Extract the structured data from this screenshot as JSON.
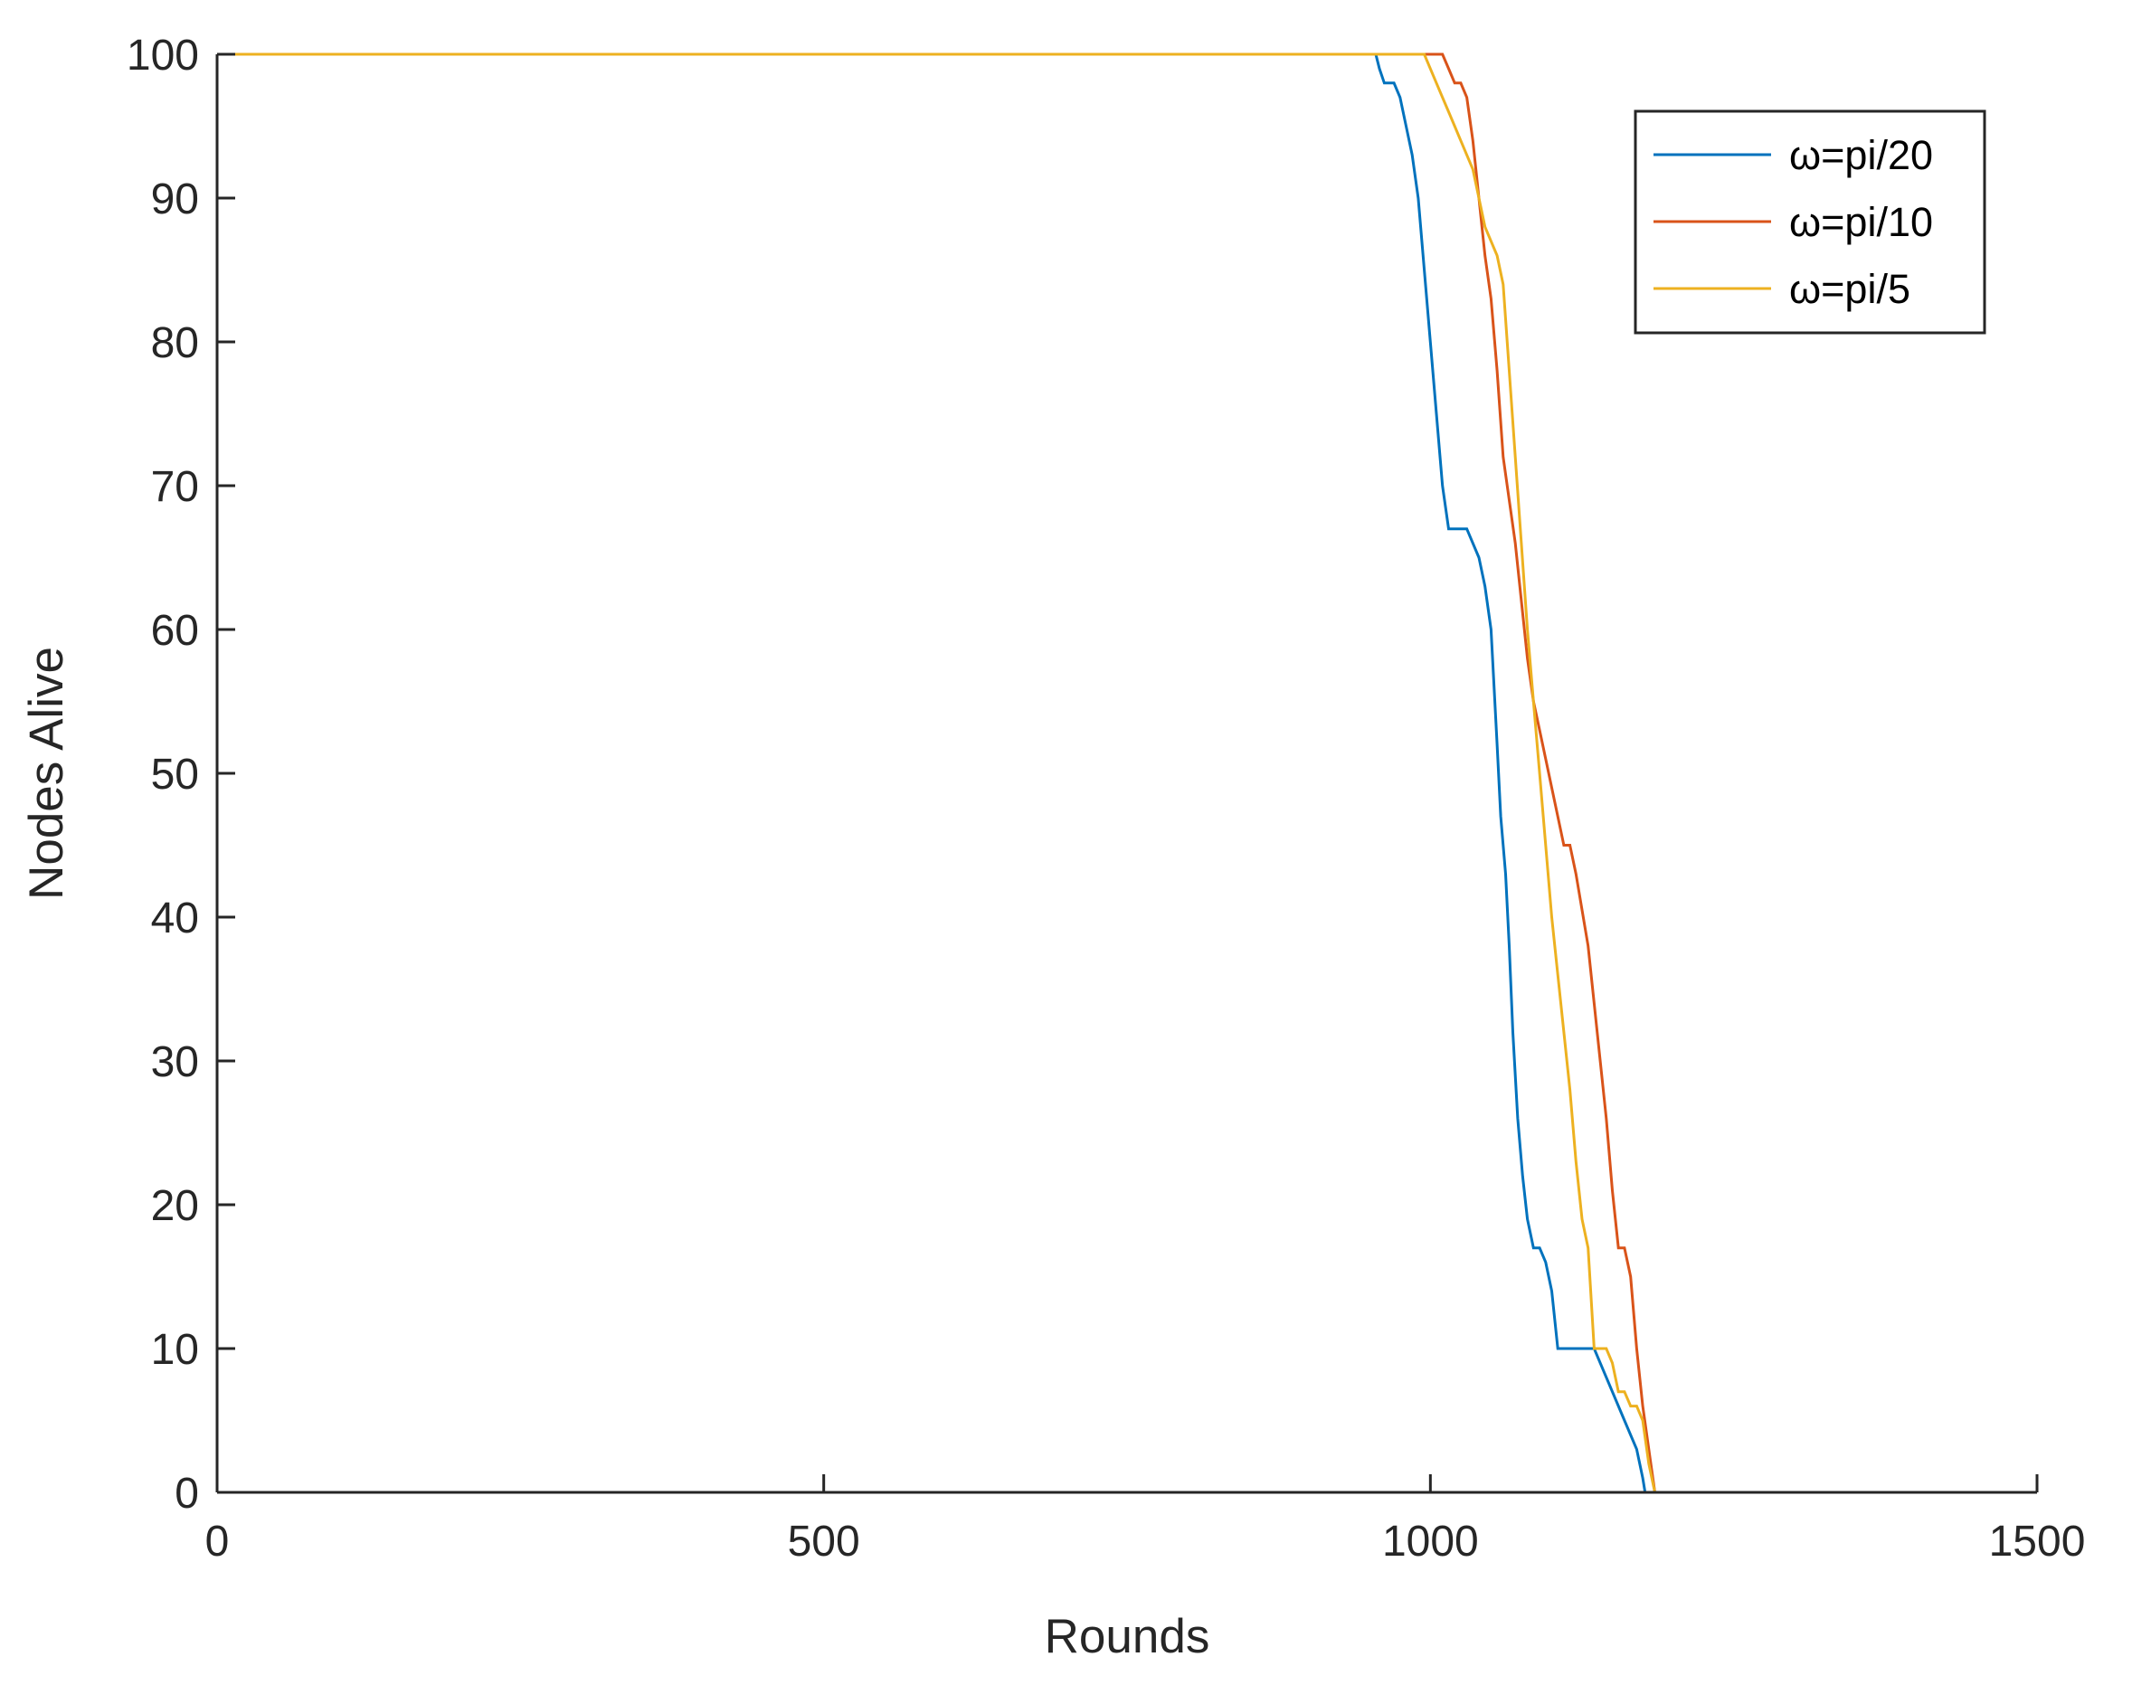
{
  "chart_data": {
    "type": "line",
    "title": "",
    "xlabel": "Rounds",
    "ylabel": "Nodes Alive",
    "xlim": [
      0,
      1500
    ],
    "ylim": [
      0,
      100
    ],
    "xticks": [
      0,
      500,
      1000,
      1500
    ],
    "yticks": [
      0,
      10,
      20,
      30,
      40,
      50,
      60,
      70,
      80,
      90,
      100
    ],
    "grid": false,
    "legend_position": "top-right",
    "series": [
      {
        "name": "ω=pi/20",
        "color": "#0072BD",
        "x": [
          0,
          955,
          958,
          962,
          970,
          975,
          980,
          985,
          990,
          995,
          1000,
          1005,
          1010,
          1015,
          1020,
          1024,
          1030,
          1040,
          1045,
          1050,
          1055,
          1058,
          1062,
          1065,
          1068,
          1072,
          1076,
          1080,
          1085,
          1090,
          1095,
          1100,
          1105,
          1110,
          1115,
          1120,
          1135,
          1140,
          1145,
          1150,
          1160,
          1170,
          1175,
          1177,
          1180,
          1500
        ],
        "y": [
          100,
          100,
          99,
          98,
          98,
          97,
          95,
          93,
          90,
          85,
          80,
          75,
          70,
          67,
          67,
          67,
          67,
          65,
          63,
          60,
          52,
          47,
          43,
          38,
          32,
          26,
          22,
          19,
          17,
          17,
          16,
          14,
          10,
          10,
          10,
          10,
          10,
          9,
          8,
          7,
          5,
          3,
          1,
          0,
          0,
          0
        ]
      },
      {
        "name": "ω=pi/10",
        "color": "#D95319",
        "x": [
          0,
          1010,
          1015,
          1020,
          1025,
          1030,
          1035,
          1040,
          1045,
          1050,
          1055,
          1060,
          1065,
          1070,
          1075,
          1080,
          1085,
          1090,
          1095,
          1100,
          1105,
          1110,
          1115,
          1120,
          1130,
          1135,
          1140,
          1145,
          1150,
          1155,
          1160,
          1165,
          1170,
          1175,
          1180,
          1185,
          1500
        ],
        "y": [
          100,
          100,
          99,
          98,
          98,
          97,
          94,
          90,
          86,
          83,
          78,
          72,
          69,
          66,
          62,
          58,
          55,
          53,
          51,
          49,
          47,
          45,
          45,
          43,
          38,
          34,
          30,
          26,
          21,
          17,
          17,
          15,
          10,
          6,
          3,
          0,
          0
        ]
      },
      {
        "name": "ω=pi/5",
        "color": "#EDB120",
        "x": [
          0,
          995,
          1000,
          1005,
          1010,
          1015,
          1020,
          1025,
          1030,
          1035,
          1040,
          1045,
          1050,
          1055,
          1060,
          1065,
          1070,
          1075,
          1080,
          1085,
          1090,
          1095,
          1100,
          1105,
          1110,
          1115,
          1120,
          1125,
          1130,
          1135,
          1140,
          1145,
          1150,
          1155,
          1160,
          1165,
          1170,
          1175,
          1180,
          1185,
          1500
        ],
        "y": [
          100,
          100,
          99,
          98,
          97,
          96,
          95,
          94,
          93,
          92,
          90,
          88,
          87,
          86,
          84,
          78,
          72,
          66,
          60,
          55,
          50,
          45,
          40,
          36,
          32,
          28,
          23,
          19,
          17,
          10,
          10,
          10,
          9,
          7,
          7,
          6,
          6,
          5,
          2,
          0,
          0
        ]
      }
    ]
  }
}
